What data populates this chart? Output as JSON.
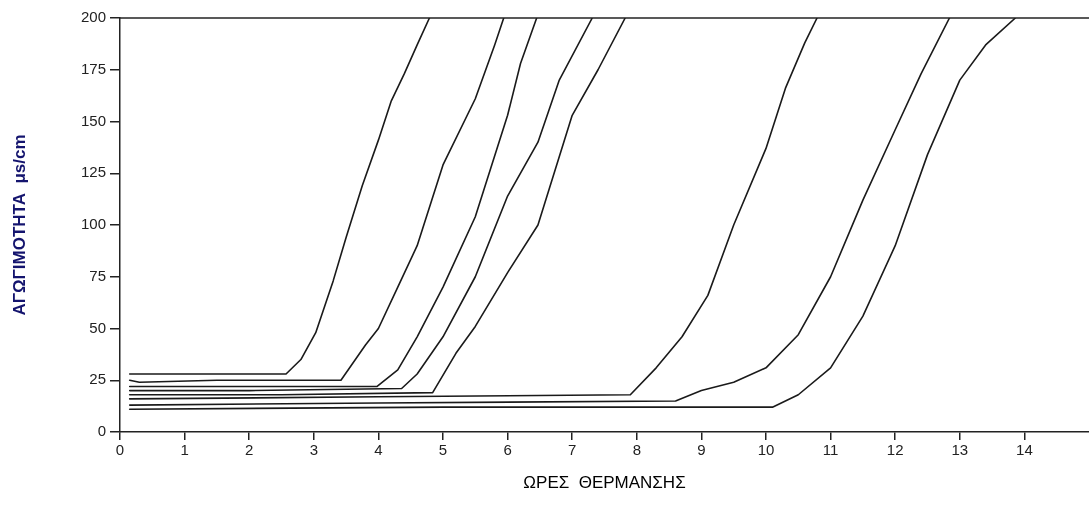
{
  "chart_data": {
    "type": "line",
    "xlabel": "ΩΡΕΣ  ΘΕΡΜΑΝΣΗΣ",
    "ylabel": "ΑΓΩΓΙΜΟΤΗΤΑ  μs/cm",
    "xlim": [
      0,
      15
    ],
    "xticks": [
      0,
      1,
      2,
      3,
      4,
      5,
      6,
      7,
      8,
      9,
      10,
      11,
      12,
      13,
      14
    ],
    "ylim": [
      0,
      200
    ],
    "yticks": [
      0,
      25,
      50,
      75,
      100,
      125,
      150,
      175,
      200
    ],
    "grid": false,
    "legend": false,
    "marker": "none",
    "line_style": "solid",
    "series": [
      {
        "color": "#1a1a1a",
        "x": [
          0.15,
          1.0,
          2.0,
          2.57,
          2.8,
          3.03,
          3.3,
          3.5,
          3.75,
          4.0,
          4.2,
          4.4,
          4.6,
          4.79
        ],
        "values": [
          28,
          28,
          28,
          28,
          35,
          48,
          73,
          94,
          119,
          141,
          160,
          173,
          187,
          200
        ]
      },
      {
        "color": "#1a1a1a",
        "x": [
          0.15,
          0.3,
          1.5,
          3.42,
          3.8,
          4.0,
          4.3,
          4.6,
          5.0,
          5.5,
          5.8,
          5.94
        ],
        "values": [
          25,
          24,
          25,
          25,
          42,
          50,
          70,
          90,
          129,
          161,
          187,
          200
        ]
      },
      {
        "color": "#1a1a1a",
        "x": [
          0.15,
          2.0,
          3.98,
          4.3,
          4.6,
          5.0,
          5.5,
          6.0,
          6.2,
          6.45
        ],
        "values": [
          22,
          22,
          22,
          30,
          46,
          70,
          104,
          153,
          178,
          200
        ]
      },
      {
        "color": "#1a1a1a",
        "x": [
          0.15,
          2.0,
          4.36,
          4.6,
          5.0,
          5.5,
          6.0,
          6.47,
          6.8,
          7.31
        ],
        "values": [
          20,
          20,
          21,
          28,
          46,
          75,
          114,
          140,
          170,
          200
        ]
      },
      {
        "color": "#1a1a1a",
        "x": [
          0.15,
          2.5,
          4.84,
          5.2,
          5.5,
          6.0,
          6.47,
          7.0,
          7.4,
          7.82
        ],
        "values": [
          18,
          18,
          19,
          38,
          51,
          77,
          100,
          153,
          175,
          200
        ]
      },
      {
        "color": "#1a1a1a",
        "x": [
          0.15,
          4.0,
          7.9,
          8.3,
          8.7,
          9.1,
          9.5,
          10.0,
          10.3,
          10.6,
          10.79
        ],
        "values": [
          16,
          17,
          18,
          31,
          46,
          66,
          100,
          137,
          166,
          188,
          200
        ]
      },
      {
        "color": "#1a1a1a",
        "x": [
          0.15,
          4.0,
          8.6,
          9.0,
          9.5,
          10.0,
          10.5,
          11.0,
          11.5,
          12.0,
          12.4,
          12.84
        ],
        "values": [
          13,
          14,
          15,
          20,
          24,
          31,
          47,
          75,
          112,
          146,
          173,
          200
        ]
      },
      {
        "color": "#1a1a1a",
        "x": [
          0.15,
          5.0,
          10.1,
          10.5,
          11.0,
          11.5,
          12.0,
          12.5,
          13.0,
          13.4,
          13.86
        ],
        "values": [
          11,
          12,
          12,
          18,
          31,
          56,
          90,
          134,
          170,
          187,
          200
        ]
      }
    ]
  }
}
